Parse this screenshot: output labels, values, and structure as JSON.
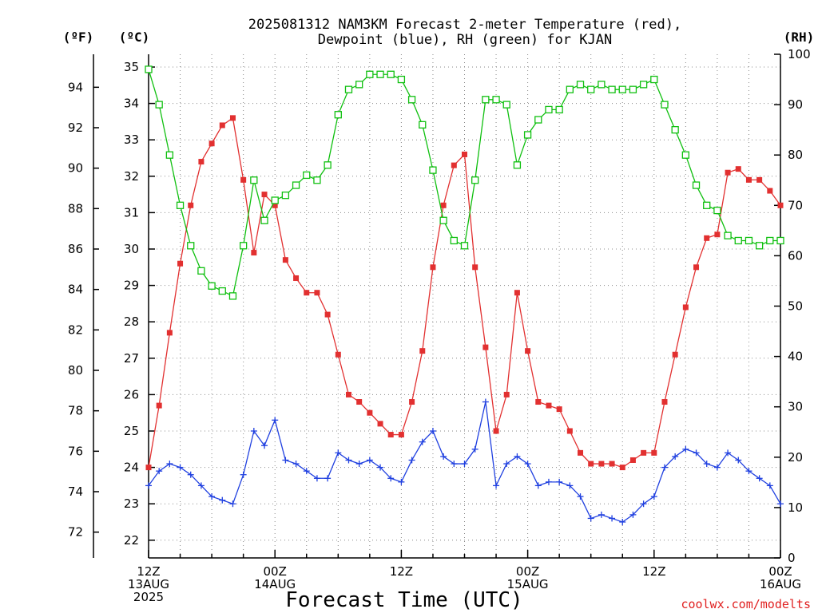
{
  "chart_data": {
    "type": "line",
    "title": "2025081312 NAM3KM Forecast 2-meter Temperature (red), Dewpoint (blue), RH (green) for KJAN",
    "title_lines": [
      "2025081312 NAM3KM Forecast 2-meter Temperature (red),",
      "Dewpoint (blue), RH (green) for KJAN"
    ],
    "xlabel": "Forecast Time (UTC)",
    "credit": "coolwx.com/modelts",
    "units": {
      "fahrenheit": "(ºF)",
      "celsius": "(ºC)",
      "rh": "(RH)"
    },
    "x_range_hours": [
      0,
      60
    ],
    "x_ticks": [
      {
        "hour": 0,
        "lines": [
          "12Z",
          "13AUG",
          "2025"
        ]
      },
      {
        "hour": 12,
        "lines": [
          "00Z",
          "14AUG"
        ]
      },
      {
        "hour": 24,
        "lines": [
          "12Z"
        ]
      },
      {
        "hour": 36,
        "lines": [
          "00Z",
          "15AUG"
        ]
      },
      {
        "hour": 48,
        "lines": [
          "12Z"
        ]
      },
      {
        "hour": 60,
        "lines": [
          "00Z",
          "16AUG"
        ]
      }
    ],
    "y_celsius": {
      "range": [
        21.6,
        35.0
      ],
      "ticks": [
        22,
        23,
        24,
        25,
        26,
        27,
        28,
        29,
        30,
        31,
        32,
        33,
        34,
        35
      ]
    },
    "y_fahrenheit": {
      "ticks": [
        72,
        74,
        76,
        78,
        80,
        82,
        84,
        86,
        88,
        90,
        92,
        94
      ]
    },
    "y_rh": {
      "range": [
        0,
        100
      ],
      "ticks": [
        0,
        10,
        20,
        30,
        40,
        50,
        60,
        70,
        80,
        90,
        100
      ]
    },
    "grid": true,
    "series": [
      {
        "name": "2-meter Temperature",
        "color": "#e23030",
        "marker": "filled-square",
        "axis": "celsius",
        "x": [
          0,
          1,
          2,
          3,
          4,
          5,
          6,
          7,
          8,
          9,
          10,
          11,
          12,
          13,
          14,
          15,
          16,
          17,
          18,
          19,
          20,
          21,
          22,
          23,
          24,
          25,
          26,
          27,
          28,
          29,
          30,
          31,
          32,
          33,
          34,
          35,
          36,
          37,
          38,
          39,
          40,
          41,
          42,
          43,
          44,
          45,
          46,
          47,
          48,
          49,
          50,
          51,
          52,
          53,
          54,
          55,
          56,
          57,
          58,
          59,
          60
        ],
        "values": [
          24.0,
          25.7,
          27.7,
          29.6,
          31.2,
          32.4,
          32.9,
          33.4,
          33.6,
          31.9,
          29.9,
          31.5,
          31.2,
          29.7,
          29.2,
          28.8,
          28.8,
          28.2,
          27.1,
          26.0,
          25.8,
          25.5,
          25.2,
          24.9,
          24.9,
          25.8,
          27.2,
          29.5,
          31.2,
          32.3,
          32.6,
          29.5,
          27.3,
          25.0,
          26.0,
          28.8,
          27.2,
          25.8,
          25.7,
          25.6,
          25.0,
          24.4,
          24.1,
          24.1,
          24.1,
          24.0,
          24.2,
          24.4,
          24.4,
          25.8,
          27.1,
          28.4,
          29.5,
          30.3,
          30.4,
          32.1,
          32.2,
          31.9,
          31.9,
          31.6,
          31.2
        ]
      },
      {
        "name": "Dewpoint",
        "color": "#2040e0",
        "marker": "plus",
        "axis": "celsius",
        "x": [
          0,
          1,
          2,
          3,
          4,
          5,
          6,
          7,
          8,
          9,
          10,
          11,
          12,
          13,
          14,
          15,
          16,
          17,
          18,
          19,
          20,
          21,
          22,
          23,
          24,
          25,
          26,
          27,
          28,
          29,
          30,
          31,
          32,
          33,
          34,
          35,
          36,
          37,
          38,
          39,
          40,
          41,
          42,
          43,
          44,
          45,
          46,
          47,
          48,
          49,
          50,
          51,
          52,
          53,
          54,
          55,
          56,
          57,
          58,
          59,
          60
        ],
        "values": [
          23.5,
          23.9,
          24.1,
          24.0,
          23.8,
          23.5,
          23.2,
          23.1,
          23.0,
          23.8,
          25.0,
          24.6,
          25.3,
          24.2,
          24.1,
          23.9,
          23.7,
          23.7,
          24.4,
          24.2,
          24.1,
          24.2,
          24.0,
          23.7,
          23.6,
          24.2,
          24.7,
          25.0,
          24.3,
          24.1,
          24.1,
          24.5,
          25.8,
          23.5,
          24.1,
          24.3,
          24.1,
          23.5,
          23.6,
          23.6,
          23.5,
          23.2,
          22.6,
          22.7,
          22.6,
          22.5,
          22.7,
          23.0,
          23.2,
          24.0,
          24.3,
          24.5,
          24.4,
          24.1,
          24.0,
          24.4,
          24.2,
          23.9,
          23.7,
          23.5,
          23.0
        ]
      },
      {
        "name": "RH",
        "color": "#10c010",
        "marker": "open-square",
        "axis": "rh",
        "x": [
          0,
          1,
          2,
          3,
          4,
          5,
          6,
          7,
          8,
          9,
          10,
          11,
          12,
          13,
          14,
          15,
          16,
          17,
          18,
          19,
          20,
          21,
          22,
          23,
          24,
          25,
          26,
          27,
          28,
          29,
          30,
          31,
          32,
          33,
          34,
          35,
          36,
          37,
          38,
          39,
          40,
          41,
          42,
          43,
          44,
          45,
          46,
          47,
          48,
          49,
          50,
          51,
          52,
          53,
          54,
          55,
          56,
          57,
          58,
          59,
          60
        ],
        "values": [
          97,
          90,
          80,
          70,
          62,
          57,
          54,
          53,
          52,
          62,
          75,
          67,
          71,
          72,
          74,
          76,
          75,
          78,
          88,
          93,
          94,
          96,
          96,
          96,
          95,
          91,
          86,
          77,
          67,
          63,
          62,
          75,
          91,
          91,
          90,
          78,
          84,
          87,
          89,
          89,
          93,
          94,
          93,
          94,
          93,
          93,
          93,
          94,
          95,
          90,
          85,
          80,
          74,
          70,
          69,
          64,
          63,
          63,
          62,
          63,
          63
        ]
      }
    ]
  }
}
